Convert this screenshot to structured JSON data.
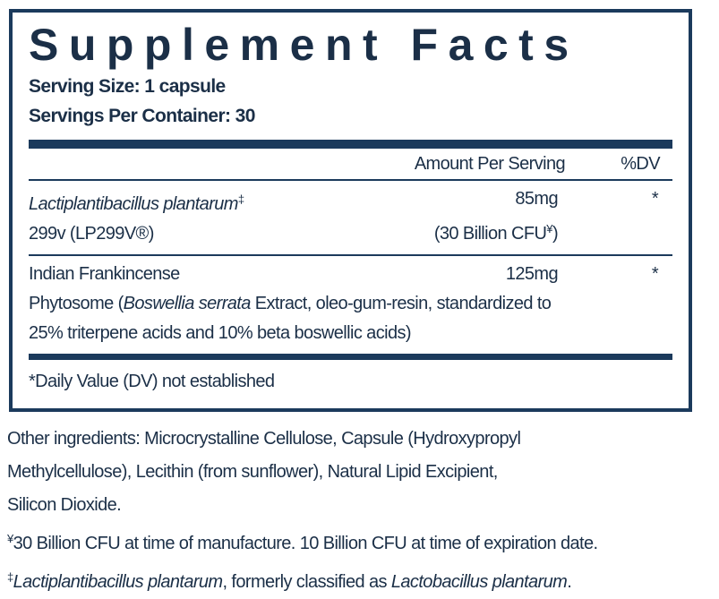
{
  "title": "Supplement Facts",
  "serving_size": "Serving Size: 1 capsule",
  "servings_per_container": "Servings Per Container: 30",
  "table": {
    "header": [
      "Amount Per Serving",
      "%DV"
    ],
    "rows": [
      {
        "description": [
          [
            {
              "text": "Lactiplantibacillus plantarum",
              "style": "italic"
            },
            {
              "text": "‡",
              "style": "sup"
            }
          ],
          [
            {
              "text": "299v (LP299V®)"
            }
          ]
        ],
        "amount": [
          [
            {
              "text": "85mg"
            }
          ],
          [
            {
              "text": "(30 Billion CFU"
            },
            {
              "text": "¥",
              "style": "sup"
            },
            {
              "text": ")"
            }
          ]
        ],
        "dv": "*"
      },
      {
        "description": [
          [
            {
              "text": "Indian Frankincense"
            }
          ],
          [
            {
              "text": "Phytosome ("
            },
            {
              "text": "Boswellia serrata",
              "style": "italic"
            },
            {
              "text": " Extract, oleo-gum-resin, standardized to"
            }
          ],
          [
            {
              "text": "25% triterpene acids and 10% beta boswellic acids)"
            }
          ]
        ],
        "amount": [
          [
            {
              "text": "125mg"
            }
          ]
        ],
        "dv": "*"
      }
    ],
    "footnote": "*Daily Value (DV) not established"
  },
  "other_ingredients": [
    [
      {
        "text": "Other ingredients: Microcrystalline Cellulose,  Capsule (Hydroxypropyl"
      }
    ],
    [
      {
        "text": "Methylcellulose), Lecithin (from sunflower), Natural Lipid Excipient,"
      }
    ],
    [
      {
        "text": "Silicon Dioxide."
      }
    ]
  ],
  "footnotes": [
    [
      {
        "text": "¥",
        "style": "sup"
      },
      {
        "text": "30 Billion CFU at time of manufacture. 10 Billion CFU at time of expiration date."
      }
    ],
    [
      {
        "text": "‡",
        "style": "sup"
      },
      {
        "text": "Lactiplantibacillus plantarum",
        "style": "italic"
      },
      {
        "text": ", formerly classified as "
      },
      {
        "text": "Lactobacillus plantarum",
        "style": "italic"
      },
      {
        "text": "."
      }
    ]
  ]
}
